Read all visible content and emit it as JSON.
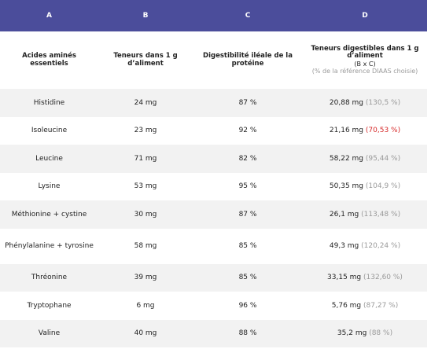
{
  "header_letters": [
    "A",
    "B",
    "C",
    "D"
  ],
  "columns": [
    {
      "title": "Acides aminés essentiels"
    },
    {
      "title": "Teneurs dans 1 g d’aliment"
    },
    {
      "title": "Digestibilité iléale de la protéine"
    },
    {
      "title": "Teneurs digestibles dans 1 g d’aliment",
      "formula": "(B x C)",
      "note": "(% de la référence DIAAS choisie)"
    }
  ],
  "rows": [
    {
      "name": "Histidine",
      "b": "24 mg",
      "c": "87 %",
      "d": "20,88 mg",
      "d_note": "(130,5 %)",
      "note_color": "#9a9a9a"
    },
    {
      "name": "Isoleucine",
      "b": "23 mg",
      "c": "92 %",
      "d": "21,16 mg",
      "d_note": "(70,53 %)",
      "note_color": "#d62828"
    },
    {
      "name": "Leucine",
      "b": "71 mg",
      "c": "82 %",
      "d": "58,22 mg",
      "d_note": "(95,44 %)",
      "note_color": "#9a9a9a"
    },
    {
      "name": "Lysine",
      "b": "53 mg",
      "c": "95 %",
      "d": "50,35 mg",
      "d_note": "(104,9 %)",
      "note_color": "#9a9a9a"
    },
    {
      "name": "Méthionine + cystine",
      "b": "30 mg",
      "c": "87 %",
      "d": "26,1 mg",
      "d_note": "(113,48 %)",
      "note_color": "#9a9a9a"
    },
    {
      "name": "Phénylalanine + tyrosine",
      "b": "58 mg",
      "c": "85 %",
      "d": "49,3 mg",
      "d_note": "(120,24 %)",
      "note_color": "#9a9a9a"
    },
    {
      "name": "Thréonine",
      "b": "39 mg",
      "c": "85 %",
      "d": "33,15 mg",
      "d_note": "(132,60 %)",
      "note_color": "#9a9a9a"
    },
    {
      "name": "Tryptophane",
      "b": "6 mg",
      "c": "96 %",
      "d": "5,76 mg",
      "d_note": "(87,27 %)",
      "note_color": "#9a9a9a"
    },
    {
      "name": "Valine",
      "b": "40 mg",
      "c": "88 %",
      "d": "35,2 mg",
      "d_note": "(88 %)",
      "note_color": "#9a9a9a"
    }
  ]
}
